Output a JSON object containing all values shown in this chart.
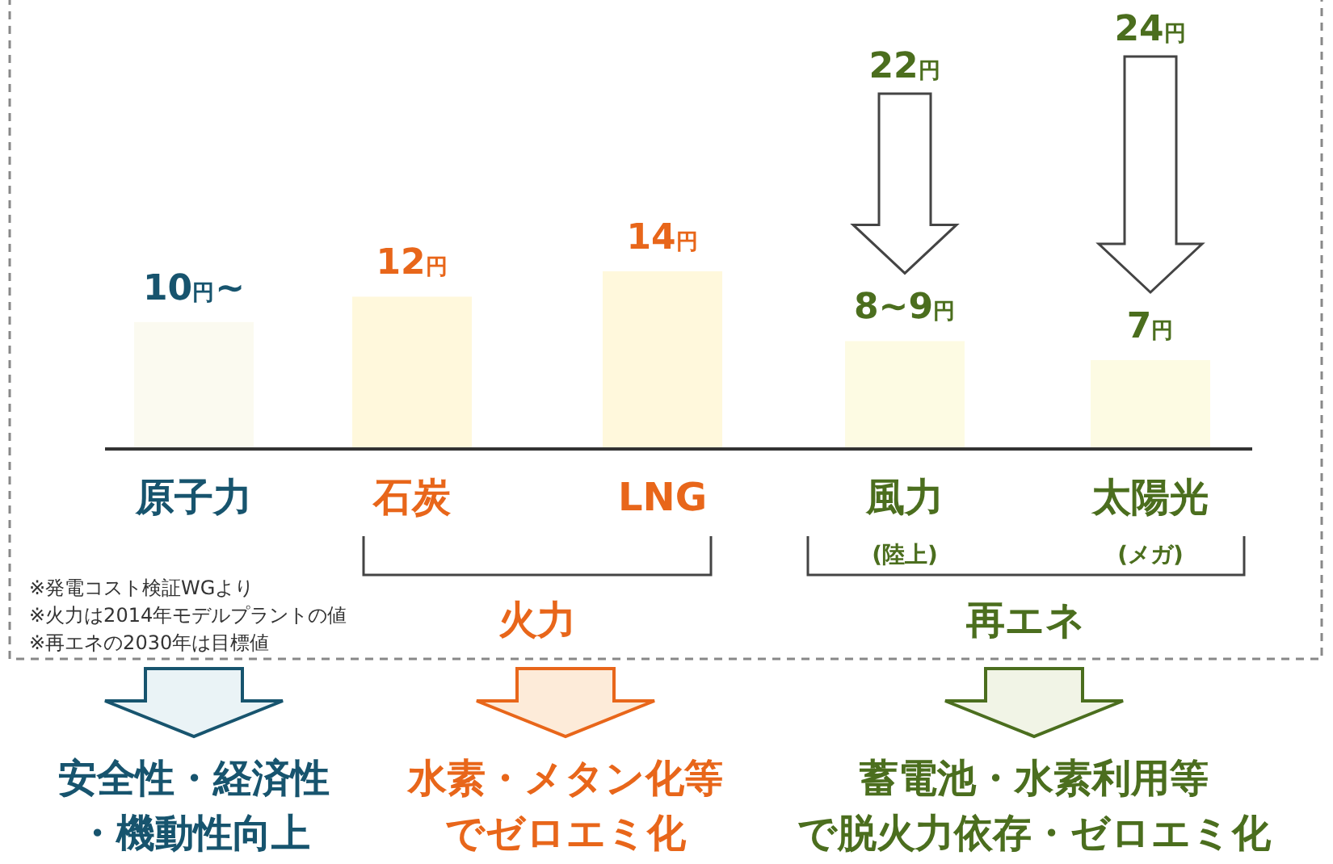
{
  "chart_data": {
    "type": "bar",
    "categories": [
      "原子力",
      "石炭",
      "LNG",
      "風力$_{(陸上)}$",
      "太陽光$_{(メガ)}$"
    ],
    "values": [
      10,
      12,
      14,
      8.5,
      7
    ],
    "value_labels": [
      "10円~",
      "12円",
      "14円",
      "8~9円",
      "7円"
    ],
    "colors": [
      "#fbfaf0",
      "#fff8dc",
      "#fff8dc",
      "#fdfbe3",
      "#fdfbe3"
    ],
    "annotations": [
      "22円",
      "24円",
      "※発電コスト検証WGより",
      "※火力は2014年モデルプラントの値",
      "※再エネの2030年は目標値",
      "火力",
      "再エネ",
      "安全性・経済性",
      "・機動性向上",
      "水素・メタン化等",
      "でゼロエミ化",
      "蓄電池・水素利用等",
      "で脱火力依存・ゼロエミ化"
    ]
  }
}
